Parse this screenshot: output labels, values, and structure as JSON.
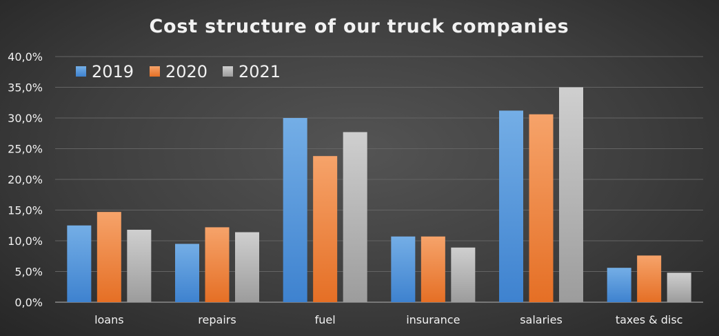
{
  "chart_data": {
    "type": "bar",
    "title": "Cost structure of our truck companies",
    "categories": [
      "loans",
      "repairs",
      "fuel",
      "insurance",
      "salaries",
      "taxes & disc"
    ],
    "series": [
      {
        "name": "2019",
        "values": [
          12.5,
          9.5,
          30.0,
          10.7,
          31.2,
          5.6
        ]
      },
      {
        "name": "2020",
        "values": [
          14.7,
          12.2,
          23.8,
          10.7,
          30.6,
          7.6
        ]
      },
      {
        "name": "2021",
        "values": [
          11.8,
          11.4,
          27.7,
          8.9,
          35.0,
          4.8
        ]
      }
    ],
    "y_ticks": [
      "0,0%",
      "5,0%",
      "10,0%",
      "15,0%",
      "20,0%",
      "25,0%",
      "30,0%",
      "35,0%",
      "40,0%"
    ],
    "ylim": [
      0,
      40
    ],
    "grid": true,
    "legend_position": "top-left",
    "colors": {
      "2019": [
        "#74aee6",
        "#3e82cf"
      ],
      "2020": [
        "#f6a36a",
        "#e56f25"
      ],
      "2021": [
        "#cfcfcf",
        "#9c9c9c"
      ],
      "grid": "#646464",
      "axis": "#8c8c8c",
      "text": "#f2f2f2"
    }
  }
}
